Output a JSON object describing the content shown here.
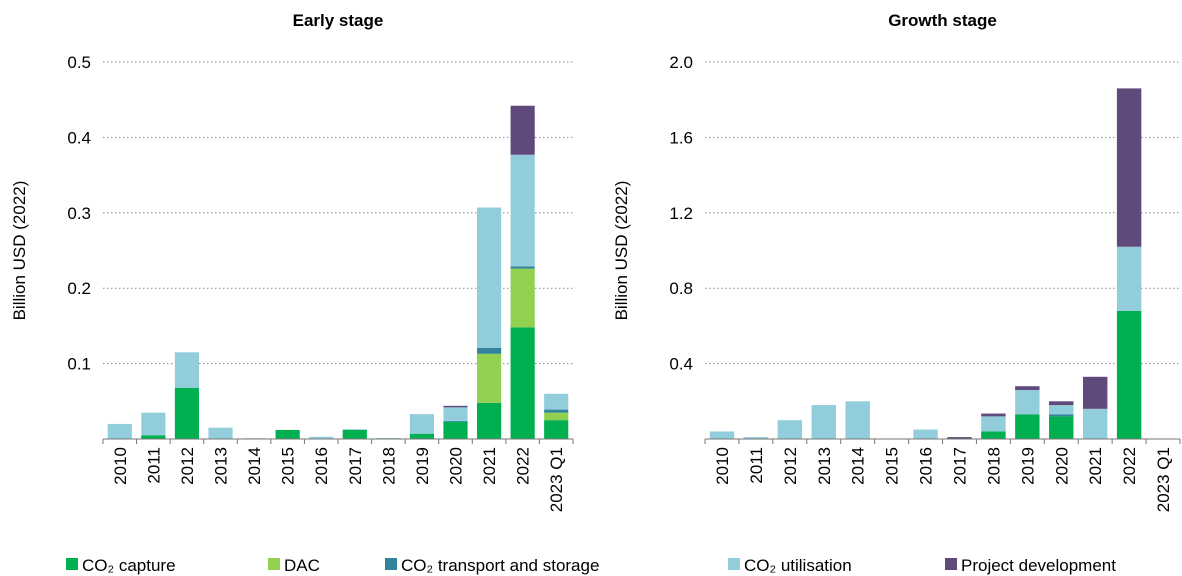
{
  "legend": [
    {
      "name": "CO₂ capture",
      "color": "#00b050"
    },
    {
      "name": "DAC",
      "color": "#92d050"
    },
    {
      "name": "CO₂ transport and storage",
      "color": "#31849b"
    },
    {
      "name": "CO₂ utilisation",
      "color": "#92cddc"
    },
    {
      "name": "Project development",
      "color": "#604a7b"
    }
  ],
  "chart_data": [
    {
      "type": "bar",
      "stacked": true,
      "title": "Early stage",
      "y_label": "Billion USD (2022)",
      "categories": [
        "2010",
        "2011",
        "2012",
        "2013",
        "2014",
        "2015",
        "2016",
        "2017",
        "2018",
        "2019",
        "2020",
        "2021",
        "2022",
        "2023 Q1"
      ],
      "series": [
        {
          "values": [
            0,
            0.005,
            0.068,
            0,
            0,
            0.012,
            0,
            0.012,
            0.001,
            0.007,
            0.023,
            0.048,
            0.148,
            0.025
          ]
        },
        {
          "values": [
            0,
            0,
            0,
            0,
            0,
            0,
            0,
            0,
            0,
            0,
            0,
            0.065,
            0.078,
            0.01
          ]
        },
        {
          "values": [
            0,
            0,
            0,
            0,
            0,
            0,
            0,
            0,
            0,
            0,
            0.001,
            0.008,
            0.003,
            0.004
          ]
        },
        {
          "values": [
            0.02,
            0.03,
            0.047,
            0.015,
            0.001,
            0,
            0.003,
            0.001,
            0,
            0.026,
            0.018,
            0.186,
            0.148,
            0.021
          ]
        },
        {
          "values": [
            0,
            0,
            0,
            0,
            0,
            0,
            0,
            0,
            0,
            0,
            0.002,
            0,
            0.065,
            0
          ]
        }
      ],
      "ylim": [
        0,
        0.5
      ],
      "yticks": [
        0.1,
        0.2,
        0.3,
        0.4,
        0.5
      ],
      "grid": true
    },
    {
      "type": "bar",
      "stacked": true,
      "title": "Growth stage",
      "y_label": "Billion USD (2022)",
      "categories": [
        "2010",
        "2011",
        "2012",
        "2013",
        "2014",
        "2015",
        "2016",
        "2017",
        "2018",
        "2019",
        "2020",
        "2021",
        "2022",
        "2023 Q1"
      ],
      "series": [
        {
          "values": [
            0,
            0,
            0,
            0,
            0,
            0,
            0,
            0,
            0.04,
            0.13,
            0.12,
            0,
            0.68,
            0
          ]
        },
        {
          "values": [
            0,
            0,
            0,
            0,
            0,
            0,
            0,
            0,
            0,
            0,
            0,
            0,
            0,
            0
          ]
        },
        {
          "values": [
            0,
            0,
            0,
            0,
            0,
            0,
            0,
            0,
            0,
            0,
            0.01,
            0,
            0,
            0
          ]
        },
        {
          "values": [
            0.04,
            0.01,
            0.1,
            0.18,
            0.2,
            0,
            0.05,
            0,
            0.08,
            0.13,
            0.05,
            0.16,
            0.34,
            0
          ]
        },
        {
          "values": [
            0,
            0,
            0,
            0,
            0,
            0,
            0,
            0.01,
            0.015,
            0.02,
            0.02,
            0.17,
            0.84,
            0
          ]
        }
      ],
      "ylim": [
        0,
        2
      ],
      "yticks": [
        0.4,
        0.8,
        1.2,
        {
          "value": 1.6,
          "label": "1.6"
        },
        {
          "value": 2,
          "label": "2.0"
        }
      ],
      "grid": true
    }
  ]
}
